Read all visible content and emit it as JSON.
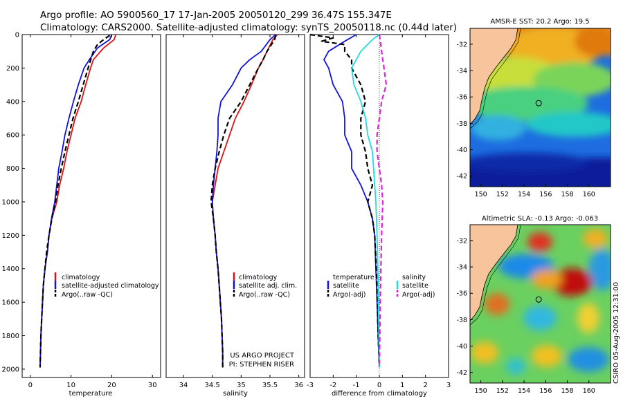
{
  "header": {
    "line1": "Argo profile: AO 5900560_17 17-Jan-2005 20050120_299 36.47S 155.347E",
    "line2": "Climatology: CARS2000. Satellite-adjusted climatology: synTS_20050118.nc (0.44d later)"
  },
  "colors": {
    "climatology": "#dd1111",
    "satellite": "#1111dd",
    "argo": "#000000",
    "sat_salinity": "#22dddd",
    "argo_adj_salinity": "#dd22dd",
    "land": "#f7c49b"
  },
  "chart_data": [
    {
      "id": "temperature",
      "type": "line",
      "xlabel": "temperature",
      "ylabel": "",
      "xlim": [
        -2,
        32
      ],
      "ylim": [
        2050,
        0
      ],
      "xticks": [
        "0",
        "10",
        "20",
        "30"
      ],
      "yticks": [
        "0",
        "200",
        "400",
        "600",
        "800",
        "1000",
        "1200",
        "1400",
        "1600",
        "1800",
        "2000"
      ],
      "legend": [
        "climatology",
        "satellite-adjusted climatology",
        "Argo(..raw -QC)"
      ],
      "series": [
        {
          "name": "climatology",
          "color": "#dd1111",
          "dash": "",
          "points": [
            [
              21,
              0
            ],
            [
              20.6,
              30
            ],
            [
              18,
              80
            ],
            [
              15.5,
              150
            ],
            [
              14.8,
              200
            ],
            [
              13.6,
              300
            ],
            [
              12.5,
              400
            ],
            [
              11,
              500
            ],
            [
              10,
              600
            ],
            [
              9,
              700
            ],
            [
              8.2,
              800
            ],
            [
              7.2,
              900
            ],
            [
              6.5,
              1000
            ],
            [
              5.3,
              1100
            ],
            [
              4.6,
              1200
            ],
            [
              4.2,
              1300
            ],
            [
              3.6,
              1400
            ],
            [
              3.2,
              1500
            ],
            [
              3,
              1600
            ],
            [
              2.8,
              1700
            ],
            [
              2.6,
              1800
            ],
            [
              2.5,
              1900
            ],
            [
              2.4,
              1990
            ]
          ]
        },
        {
          "name": "satellite-adjusted climatology",
          "color": "#1111dd",
          "dash": "",
          "points": [
            [
              20,
              0
            ],
            [
              19.5,
              30
            ],
            [
              16.5,
              80
            ],
            [
              14.5,
              150
            ],
            [
              13.2,
              200
            ],
            [
              11.8,
              300
            ],
            [
              10.6,
              400
            ],
            [
              9.5,
              500
            ],
            [
              8.5,
              600
            ],
            [
              7.8,
              700
            ],
            [
              7,
              800
            ],
            [
              6.5,
              900
            ],
            [
              6,
              1000
            ],
            [
              5.2,
              1100
            ],
            [
              4.6,
              1200
            ],
            [
              4.2,
              1300
            ],
            [
              3.6,
              1400
            ],
            [
              3.2,
              1500
            ],
            [
              3,
              1600
            ],
            [
              2.8,
              1700
            ],
            [
              2.6,
              1800
            ],
            [
              2.5,
              1900
            ],
            [
              2.4,
              1990
            ]
          ]
        },
        {
          "name": "Argo(..raw -QC)",
          "color": "#000000",
          "dash": "7,4",
          "points": [
            [
              19.5,
              5
            ],
            [
              18,
              30
            ],
            [
              16.5,
              60
            ],
            [
              15.5,
              100
            ],
            [
              14.2,
              200
            ],
            [
              13,
              300
            ],
            [
              11.8,
              400
            ],
            [
              10.5,
              500
            ],
            [
              9.5,
              600
            ],
            [
              8.5,
              700
            ],
            [
              7.6,
              800
            ],
            [
              6.8,
              900
            ],
            [
              6.2,
              1000
            ],
            [
              5.3,
              1100
            ],
            [
              4.6,
              1200
            ],
            [
              4,
              1300
            ],
            [
              3.6,
              1400
            ],
            [
              3.2,
              1500
            ],
            [
              3,
              1600
            ],
            [
              2.8,
              1700
            ],
            [
              2.6,
              1800
            ],
            [
              2.5,
              1900
            ],
            [
              2.4,
              1990
            ]
          ]
        }
      ]
    },
    {
      "id": "salinity",
      "type": "line",
      "xlabel": "salinity",
      "ylabel": "",
      "xlim": [
        33.7,
        36.1
      ],
      "ylim": [
        2050,
        0
      ],
      "xticks": [
        "34",
        "34.5",
        "35",
        "35.5",
        "36"
      ],
      "legend": [
        "climatology",
        "satellite adj. clim.",
        "Argo(..raw -QC)"
      ],
      "annotation": [
        "US ARGO PROJECT",
        "PI: STEPHEN RISER"
      ],
      "series": [
        {
          "name": "climatology",
          "color": "#dd1111",
          "dash": "",
          "points": [
            [
              35.63,
              0
            ],
            [
              35.55,
              30
            ],
            [
              35.45,
              100
            ],
            [
              35.38,
              150
            ],
            [
              35.3,
              200
            ],
            [
              35.18,
              300
            ],
            [
              35.05,
              400
            ],
            [
              34.9,
              500
            ],
            [
              34.8,
              600
            ],
            [
              34.7,
              700
            ],
            [
              34.6,
              800
            ],
            [
              34.55,
              900
            ],
            [
              34.5,
              1000
            ],
            [
              34.52,
              1100
            ],
            [
              34.55,
              1200
            ],
            [
              34.57,
              1300
            ],
            [
              34.6,
              1400
            ],
            [
              34.62,
              1500
            ],
            [
              34.64,
              1600
            ],
            [
              34.66,
              1700
            ],
            [
              34.67,
              1800
            ],
            [
              34.68,
              1900
            ],
            [
              34.68,
              1990
            ]
          ]
        },
        {
          "name": "satellite adj. clim.",
          "color": "#1111dd",
          "dash": "",
          "points": [
            [
              35.6,
              0
            ],
            [
              35.5,
              30
            ],
            [
              35.35,
              100
            ],
            [
              35.15,
              150
            ],
            [
              35,
              200
            ],
            [
              34.85,
              300
            ],
            [
              34.65,
              400
            ],
            [
              34.6,
              500
            ],
            [
              34.6,
              600
            ],
            [
              34.58,
              700
            ],
            [
              34.55,
              800
            ],
            [
              34.52,
              900
            ],
            [
              34.5,
              1000
            ],
            [
              34.52,
              1100
            ],
            [
              34.55,
              1200
            ],
            [
              34.57,
              1300
            ],
            [
              34.6,
              1400
            ],
            [
              34.62,
              1500
            ],
            [
              34.64,
              1600
            ],
            [
              34.66,
              1700
            ],
            [
              34.67,
              1800
            ],
            [
              34.68,
              1900
            ],
            [
              34.68,
              1990
            ]
          ]
        },
        {
          "name": "Argo(..raw -QC)",
          "color": "#000000",
          "dash": "7,4",
          "points": [
            [
              35.6,
              5
            ],
            [
              35.58,
              30
            ],
            [
              35.45,
              100
            ],
            [
              35.38,
              150
            ],
            [
              35.3,
              200
            ],
            [
              35.15,
              300
            ],
            [
              35,
              400
            ],
            [
              34.8,
              500
            ],
            [
              34.7,
              600
            ],
            [
              34.62,
              700
            ],
            [
              34.55,
              800
            ],
            [
              34.5,
              900
            ],
            [
              34.48,
              1000
            ],
            [
              34.52,
              1100
            ],
            [
              34.55,
              1200
            ],
            [
              34.57,
              1300
            ],
            [
              34.6,
              1400
            ],
            [
              34.62,
              1500
            ],
            [
              34.64,
              1600
            ],
            [
              34.66,
              1700
            ],
            [
              34.67,
              1800
            ],
            [
              34.68,
              1900
            ],
            [
              34.68,
              1990
            ]
          ]
        }
      ]
    },
    {
      "id": "difference",
      "type": "line",
      "xlabel": "difference from climatology",
      "ylabel": "",
      "xlim": [
        -3,
        3
      ],
      "ylim": [
        2050,
        0
      ],
      "xticks": [
        "-3",
        "-2",
        "-1",
        "0",
        "1",
        "2",
        "3"
      ],
      "legend_left": [
        "temperature",
        "satellite",
        "Argo(-adj)"
      ],
      "legend_right": [
        "salinity",
        "satellite",
        "Argo(-adj)"
      ],
      "series": [
        {
          "name": "temperature satellite",
          "color": "#1111dd",
          "dash": "",
          "points": [
            [
              -1,
              0
            ],
            [
              -1.5,
              40
            ],
            [
              -2.2,
              100
            ],
            [
              -2.4,
              150
            ],
            [
              -2.2,
              200
            ],
            [
              -2,
              300
            ],
            [
              -1.6,
              400
            ],
            [
              -1.5,
              500
            ],
            [
              -1.5,
              600
            ],
            [
              -1.2,
              700
            ],
            [
              -1.2,
              800
            ],
            [
              -0.8,
              900
            ],
            [
              -0.5,
              1000
            ],
            [
              -0.3,
              1100
            ],
            [
              -0.2,
              1200
            ],
            [
              -0.15,
              1400
            ],
            [
              -0.1,
              1600
            ],
            [
              -0.05,
              1800
            ],
            [
              0,
              1990
            ]
          ]
        },
        {
          "name": "temperature Argo(-adj)",
          "color": "#000000",
          "dash": "7,4",
          "points": [
            [
              -3,
              0
            ],
            [
              -2,
              20
            ],
            [
              -2.5,
              40
            ],
            [
              -1.5,
              60
            ],
            [
              -1.5,
              100
            ],
            [
              -1.2,
              150
            ],
            [
              -1.2,
              200
            ],
            [
              -0.8,
              300
            ],
            [
              -0.6,
              400
            ],
            [
              -0.8,
              500
            ],
            [
              -0.8,
              600
            ],
            [
              -0.6,
              700
            ],
            [
              -0.5,
              800
            ],
            [
              -0.3,
              900
            ],
            [
              -0.5,
              1000
            ],
            [
              -0.3,
              1100
            ],
            [
              -0.2,
              1200
            ],
            [
              -0.1,
              1500
            ],
            [
              -0.05,
              1800
            ],
            [
              0,
              1990
            ]
          ]
        },
        {
          "name": "salinity satellite",
          "color": "#22dddd",
          "dash": "",
          "points": [
            [
              0,
              0
            ],
            [
              -0.3,
              30
            ],
            [
              -0.8,
              100
            ],
            [
              -1.2,
              200
            ],
            [
              -1.1,
              300
            ],
            [
              -0.8,
              400
            ],
            [
              -0.6,
              500
            ],
            [
              -0.5,
              600
            ],
            [
              -0.3,
              700
            ],
            [
              -0.25,
              800
            ],
            [
              -0.2,
              900
            ],
            [
              -0.15,
              1000
            ],
            [
              -0.1,
              1200
            ],
            [
              -0.05,
              1500
            ],
            [
              0,
              1990
            ]
          ]
        },
        {
          "name": "salinity Argo(-adj)",
          "color": "#dd22dd",
          "dash": "7,4",
          "points": [
            [
              0,
              0
            ],
            [
              0.1,
              100
            ],
            [
              0.2,
              200
            ],
            [
              0.3,
              300
            ],
            [
              0.1,
              400
            ],
            [
              0,
              500
            ],
            [
              -0.1,
              600
            ],
            [
              -0.1,
              700
            ],
            [
              0,
              800
            ],
            [
              0.1,
              900
            ],
            [
              0.15,
              1000
            ],
            [
              0.1,
              1200
            ],
            [
              0.05,
              1500
            ],
            [
              0,
              1990
            ]
          ]
        }
      ]
    }
  ],
  "maps": [
    {
      "id": "sst",
      "title": "AMSR-E SST: 20.2 Argo: 19.5",
      "xticks": [
        "150",
        "152",
        "154",
        "156",
        "158",
        "160"
      ],
      "yticks": [
        "-32",
        "-34",
        "-36",
        "-38",
        "-40",
        "-42"
      ],
      "lon_range": [
        149,
        162
      ],
      "lat_range": [
        -42.8,
        -30.8
      ],
      "float": {
        "lon": 155.35,
        "lat": -36.47
      }
    },
    {
      "id": "sla",
      "title": "Altimetric SLA: -0.13 Argo: -0.063",
      "xticks": [
        "150",
        "152",
        "154",
        "156",
        "158",
        "160"
      ],
      "yticks": [
        "-32",
        "-34",
        "-36",
        "-38",
        "-40",
        "-42"
      ],
      "lon_range": [
        149,
        162
      ],
      "lat_range": [
        -42.8,
        -30.8
      ],
      "float": {
        "lon": 155.35,
        "lat": -36.47
      }
    }
  ],
  "side_label": "CSIRO 05-Aug-2005 12:31:00"
}
